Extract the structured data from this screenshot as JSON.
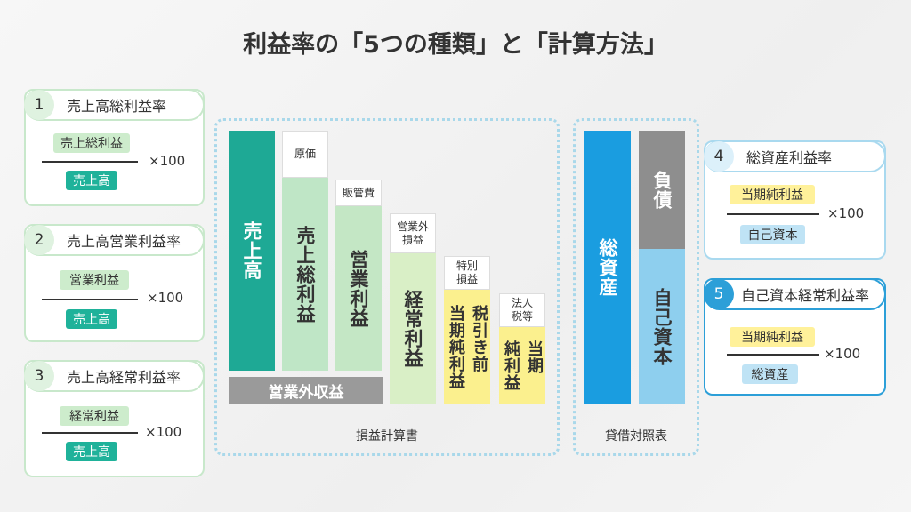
{
  "title": "利益率の「5つの種類」と「計算方法」",
  "formulas": [
    {
      "number": "1",
      "name": "売上高総利益率",
      "numerator": "売上総利益",
      "denominator": "売上高",
      "multiplier": "×100"
    },
    {
      "number": "2",
      "name": "売上高営業利益率",
      "numerator": "営業利益",
      "denominator": "売上高",
      "multiplier": "×100"
    },
    {
      "number": "3",
      "name": "売上高経常利益率",
      "numerator": "経常利益",
      "denominator": "売上高",
      "multiplier": "×100"
    },
    {
      "number": "4",
      "name": "総資産利益率",
      "numerator": "当期純利益",
      "denominator": "自己資本",
      "multiplier": "×100"
    },
    {
      "number": "5",
      "name": "自己資本経常利益率",
      "numerator": "当期純利益",
      "denominator": "総資産",
      "multiplier": "×100"
    }
  ],
  "income_statement": {
    "label": "損益計算書",
    "sales": "売上高",
    "cost": "原価",
    "gross_profit": "売上総利益",
    "sga": "販管費",
    "operating_profit": "営業利益",
    "non_operating_income": "営業外収益",
    "non_operating": [
      "営業外",
      "損益"
    ],
    "ordinary_profit": "経常利益",
    "extraordinary": [
      "特別",
      "損益"
    ],
    "pretax_profit": [
      "税引き前",
      "当期純利益"
    ],
    "tax": [
      "法人",
      "税等"
    ],
    "net_profit": [
      "当期",
      "純利益"
    ]
  },
  "balance_sheet": {
    "label": "貸借対照表",
    "total_assets": "総資産",
    "liabilities": "負債",
    "equity": "自己資本"
  }
}
